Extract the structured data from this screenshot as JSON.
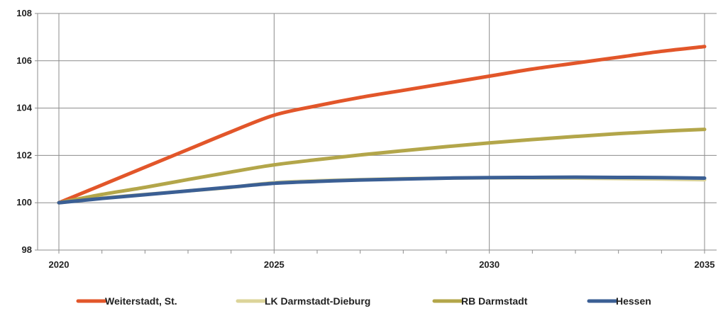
{
  "chart_data": {
    "type": "line",
    "x": [
      2020,
      2021,
      2022,
      2023,
      2024,
      2025,
      2026,
      2027,
      2028,
      2029,
      2030,
      2031,
      2032,
      2033,
      2034,
      2035
    ],
    "x_tick_labels": [
      "2020",
      "2025",
      "2030",
      "2035"
    ],
    "y_tick_labels": [
      "98",
      "100",
      "102",
      "104",
      "106",
      "108"
    ],
    "ylim": [
      98,
      108
    ],
    "xlim": [
      2020,
      2035
    ],
    "grid": true,
    "legend_position": "bottom",
    "title": "",
    "xlabel": "",
    "ylabel": "",
    "series": [
      {
        "name": "Weiterstadt, St.",
        "color": "#e2562a",
        "values": [
          100.0,
          100.75,
          101.5,
          102.25,
          103.0,
          103.7,
          104.1,
          104.45,
          104.75,
          105.05,
          105.35,
          105.65,
          105.9,
          106.15,
          106.4,
          106.6
        ]
      },
      {
        "name": "LK Darmstadt-Dieburg",
        "color": "#dcd49a",
        "values": [
          100.0,
          100.2,
          100.35,
          100.5,
          100.65,
          100.85,
          100.93,
          100.98,
          101.02,
          101.04,
          101.05,
          101.05,
          101.04,
          101.02,
          101.0,
          100.97
        ]
      },
      {
        "name": "RB Darmstadt",
        "color": "#b3a64a",
        "values": [
          100.0,
          100.35,
          100.65,
          100.98,
          101.3,
          101.6,
          101.82,
          102.02,
          102.2,
          102.37,
          102.53,
          102.67,
          102.8,
          102.92,
          103.02,
          103.1
        ]
      },
      {
        "name": "Hessen",
        "color": "#3b5f94",
        "values": [
          100.0,
          100.18,
          100.34,
          100.5,
          100.66,
          100.82,
          100.9,
          100.96,
          101.0,
          101.04,
          101.06,
          101.07,
          101.08,
          101.07,
          101.06,
          101.04
        ]
      }
    ]
  }
}
